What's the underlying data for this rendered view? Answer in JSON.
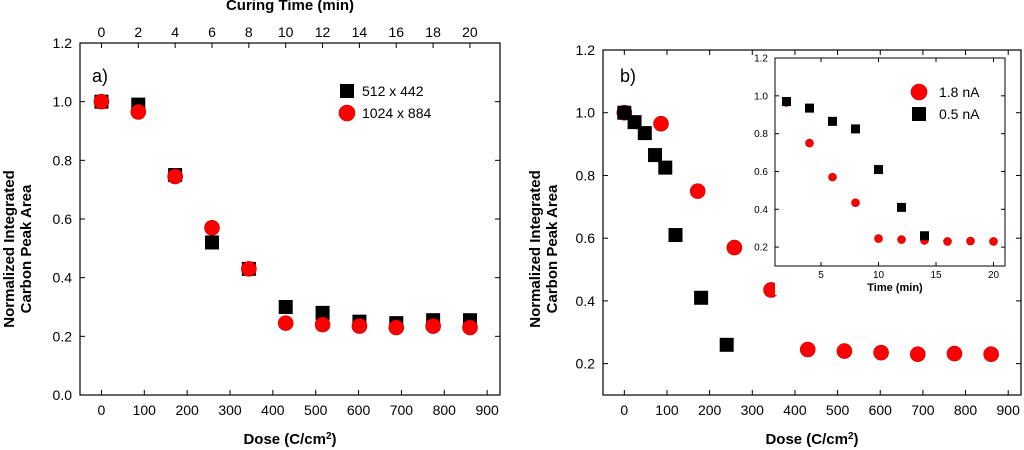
{
  "colors": {
    "series_black": "#000000",
    "series_red": "#ff0000",
    "marker_edge": "#c00000"
  },
  "chart_data": [
    {
      "panel": "a)",
      "type": "scatter",
      "xlabel": "Dose (C/cm",
      "xlabel_sup": "2",
      "xlabel_end": ")",
      "ylabel_line1": "Normalized Integrated",
      "ylabel_line2": "Carbon Peak Area",
      "top_axis_label": "Curing Time (min)",
      "xlim": [
        -50,
        930
      ],
      "ylim": [
        0,
        1.2
      ],
      "x_ticks": [
        0,
        100,
        200,
        300,
        400,
        500,
        600,
        700,
        800,
        900
      ],
      "y_ticks": [
        "0.0",
        "0.2",
        "0.4",
        "0.6",
        "0.8",
        "1.0",
        "1.2"
      ],
      "top_ticks": [
        0,
        2,
        4,
        6,
        8,
        10,
        12,
        14,
        16,
        18,
        20
      ],
      "top_time_per_dose": 0.02326,
      "legend": {
        "placement": "top-right"
      },
      "series": [
        {
          "name": "512 x 442",
          "marker": "square",
          "color": "#000000",
          "x": [
            0,
            86,
            172,
            258,
            344,
            430,
            516,
            602,
            688,
            774,
            860
          ],
          "y": [
            1.0,
            0.99,
            0.75,
            0.52,
            0.43,
            0.3,
            0.28,
            0.25,
            0.245,
            0.255,
            0.255
          ]
        },
        {
          "name": "1024 x 884",
          "marker": "circle",
          "color": "#ff0000",
          "x": [
            0,
            86,
            172,
            258,
            344,
            430,
            516,
            602,
            688,
            774,
            860
          ],
          "y": [
            1.0,
            0.965,
            0.745,
            0.57,
            0.43,
            0.245,
            0.24,
            0.235,
            0.23,
            0.235,
            0.23
          ]
        }
      ]
    },
    {
      "panel": "b)",
      "type": "scatter",
      "xlabel": "Dose (C/cm",
      "xlabel_sup": "2",
      "xlabel_end": ")",
      "ylabel_line1": "Normalized Integrated",
      "ylabel_line2": "Carbon Peak Area",
      "xlim": [
        -50,
        930
      ],
      "ylim": [
        0.1,
        1.2
      ],
      "x_ticks": [
        0,
        100,
        200,
        300,
        400,
        500,
        600,
        700,
        800,
        900
      ],
      "y_ticks": [
        "0.2",
        "0.4",
        "0.6",
        "0.8",
        "1.0",
        "1.2"
      ],
      "series": [
        {
          "name": "1.8 nA",
          "marker": "circle",
          "color": "#ff0000",
          "x": [
            0,
            86,
            172,
            258,
            344,
            430,
            516,
            602,
            688,
            774,
            860
          ],
          "y": [
            1.0,
            0.965,
            0.75,
            0.57,
            0.435,
            0.245,
            0.24,
            0.235,
            0.23,
            0.232,
            0.23
          ]
        },
        {
          "name": "0.5 nA",
          "marker": "square",
          "color": "#000000",
          "x": [
            0,
            24,
            48,
            72,
            96,
            120,
            180,
            240
          ],
          "y": [
            1.0,
            0.97,
            0.935,
            0.865,
            0.825,
            0.61,
            0.41,
            0.26
          ]
        }
      ],
      "inset": {
        "type": "scatter",
        "xlabel": "Time (min)",
        "xlim": [
          1,
          21
        ],
        "ylim": [
          0.1,
          1.2
        ],
        "x_ticks": [
          5,
          10,
          15,
          20
        ],
        "y_ticks": [
          "0.2",
          "0.4",
          "0.6",
          "0.8",
          "1.0",
          "1.2"
        ],
        "legend": {
          "placement": "top-right"
        },
        "series": [
          {
            "name": "1.8 nA",
            "marker": "circle",
            "color": "#ff0000",
            "x": [
              2,
              4,
              6,
              8,
              10,
              12,
              14,
              16,
              18,
              20
            ],
            "y": [
              0.965,
              0.75,
              0.57,
              0.435,
              0.245,
              0.24,
              0.235,
              0.23,
              0.232,
              0.23
            ]
          },
          {
            "name": "0.5 nA",
            "marker": "square",
            "color": "#000000",
            "x": [
              2,
              4,
              6,
              8,
              10,
              12,
              14
            ],
            "y": [
              0.97,
              0.935,
              0.865,
              0.825,
              0.61,
              0.41,
              0.26
            ]
          }
        ]
      }
    }
  ]
}
